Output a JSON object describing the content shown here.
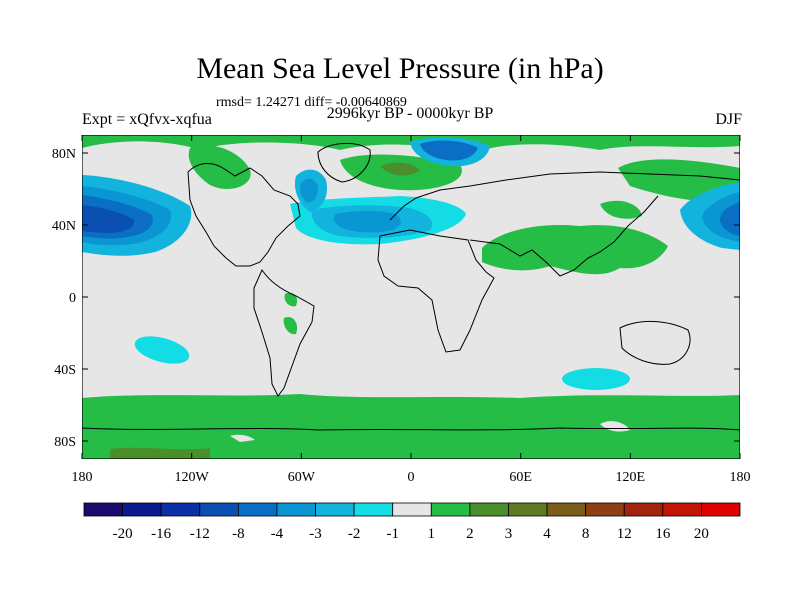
{
  "figure": {
    "title": "Mean Sea Level Pressure (in hPa)",
    "stats": "rmsd= 1.24271 diff= -0.00640869",
    "experiment": "Expt = xQfvx-xqfua",
    "period": "2996kyr BP - 0000kyr BP",
    "season": "DJF"
  },
  "chart_data": {
    "type": "filled-contour-map",
    "title": "Mean Sea Level Pressure (in hPa)",
    "variable": "MSLP difference",
    "units": "hPa",
    "projection": "cylindrical equidistant",
    "xlim": [
      -180,
      180
    ],
    "ylim": [
      -90,
      90
    ],
    "x_ticks": [
      {
        "value": -180,
        "label": "180"
      },
      {
        "value": -120,
        "label": "120W"
      },
      {
        "value": -60,
        "label": "60W"
      },
      {
        "value": 0,
        "label": "0"
      },
      {
        "value": 60,
        "label": "60E"
      },
      {
        "value": 120,
        "label": "120E"
      },
      {
        "value": 180,
        "label": "180"
      }
    ],
    "y_ticks": [
      {
        "value": 80,
        "label": "80N"
      },
      {
        "value": 40,
        "label": "40N"
      },
      {
        "value": 0,
        "label": "0"
      },
      {
        "value": -40,
        "label": "40S"
      },
      {
        "value": -80,
        "label": "80S"
      }
    ],
    "colorbar": {
      "levels": [
        "-20",
        "-16",
        "-12",
        "-8",
        "-4",
        "-3",
        "-2",
        "-1",
        "1",
        "2",
        "3",
        "4",
        "8",
        "12",
        "16",
        "20"
      ],
      "colors": [
        "#1a0b6e",
        "#0b1a8c",
        "#0a2fa6",
        "#0b4fb3",
        "#0a6fc4",
        "#0a96d2",
        "#12b4de",
        "#14dce4",
        "#e6e6e6",
        "#26bd47",
        "#4a8f2c",
        "#5e7a23",
        "#7b5c1a",
        "#8e3f14",
        "#a2230e",
        "#c11508",
        "#e10000"
      ]
    },
    "regions": [
      {
        "name": "North Pacific low anomaly",
        "lon": -150,
        "lat": 40,
        "value": -12
      },
      {
        "name": "North Atlantic low anomaly",
        "lon": -20,
        "lat": 38,
        "value": -3
      },
      {
        "name": "Arctic low anomaly",
        "lon": 28,
        "lat": 83,
        "value": -4
      },
      {
        "name": "Labrador Sea low anomaly",
        "lon": -60,
        "lat": 57,
        "value": -3
      },
      {
        "name": "NW Pacific low anomaly",
        "lon": 175,
        "lat": 40,
        "value": -8
      },
      {
        "name": "SE Pacific low anomaly",
        "lon": -130,
        "lat": -25,
        "value": -1
      },
      {
        "name": "South Indian Ocean low anomaly",
        "lon": 85,
        "lat": -40,
        "value": -1
      },
      {
        "name": "Asia / Sahara high anomaly",
        "lon": 55,
        "lat": 25,
        "value": 1
      },
      {
        "name": "Southern Ocean / Antarctic high anomaly",
        "lon": 0,
        "lat": -75,
        "value": 1
      },
      {
        "name": "Greenland high anomaly",
        "lon": -35,
        "lat": 72,
        "value": 2
      }
    ]
  }
}
